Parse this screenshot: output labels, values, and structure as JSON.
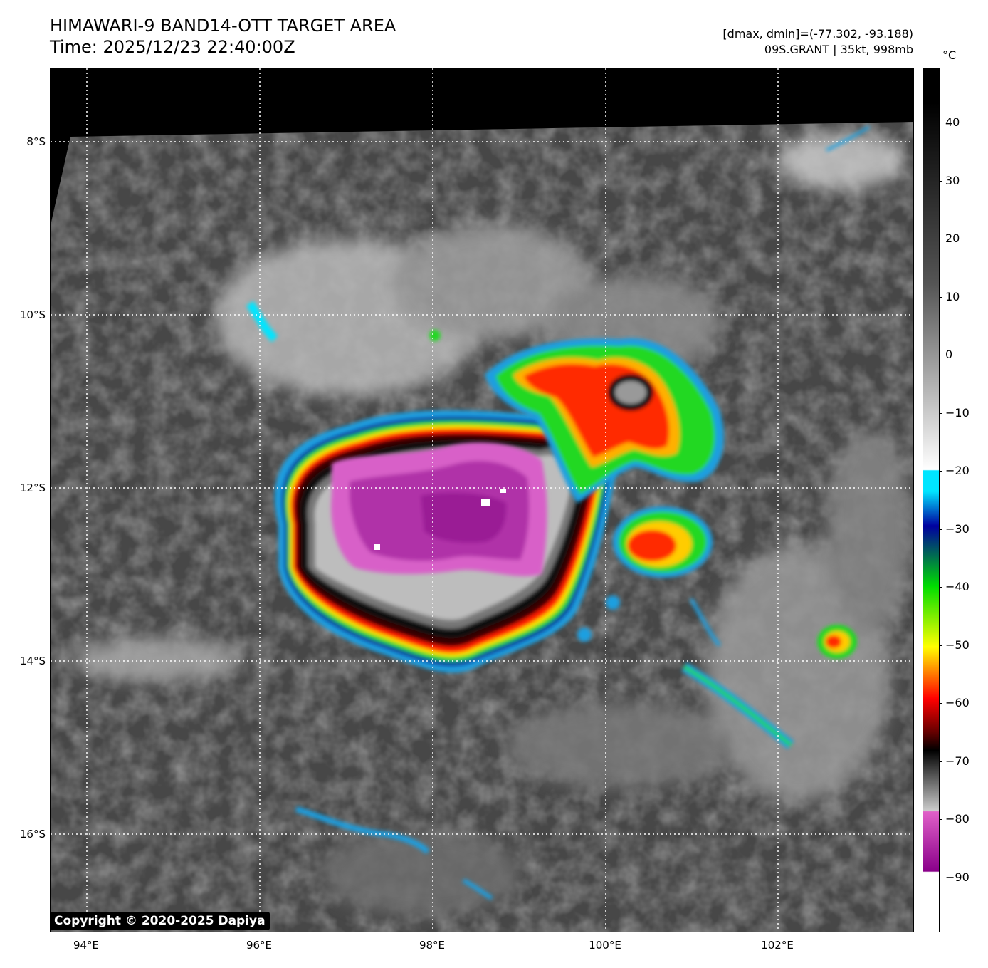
{
  "header": {
    "title_line1": "HIMAWARI-9 BAND14-OTT TARGET AREA",
    "title_line2": "Time: 2025/12/23 22:40:00Z",
    "info_line1": "[dmax, dmin]=(-77.302, -93.188)",
    "info_line2": "09S.GRANT | 35kt, 998mb"
  },
  "map": {
    "lat_labels": [
      "8°S",
      "10°S",
      "12°S",
      "14°S",
      "16°S"
    ],
    "lon_labels": [
      "94°E",
      "96°E",
      "98°E",
      "100°E",
      "102°E"
    ],
    "gridlines": true,
    "copyright": "Copyright © 2020-2025 Dapiya"
  },
  "colorbar": {
    "unit": "°C",
    "ticks": [
      "40",
      "30",
      "20",
      "10",
      "0",
      "−10",
      "−20",
      "−30",
      "−40",
      "−50",
      "−60",
      "−70",
      "−80",
      "−90"
    ],
    "colors": {
      "warm_top": "#000000",
      "gray_mid": "#ffffff",
      "cyan": "#00e5ff",
      "blue": "#0000a0",
      "green": "#00dd00",
      "yellow": "#ffff00",
      "red": "#ff0000",
      "dark_red": "#600000",
      "magenta": "#e060c8",
      "purple": "#8a008a",
      "white": "#ffffff"
    }
  }
}
